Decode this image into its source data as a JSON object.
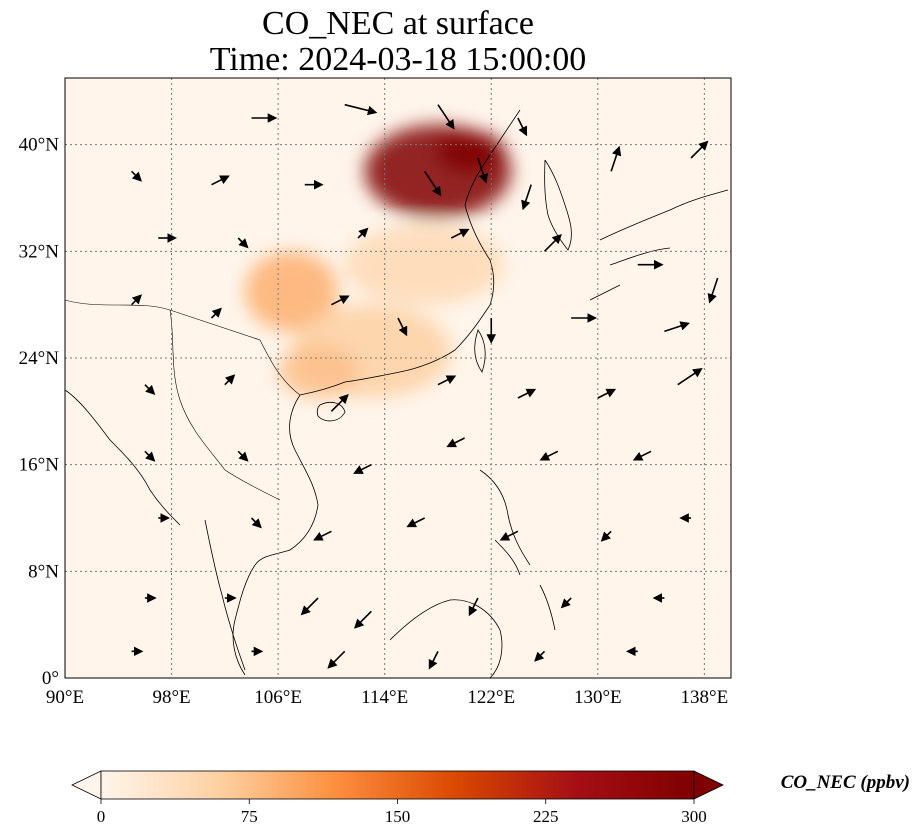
{
  "title": {
    "line1": "CO_NEC at surface",
    "line2": "Time: 2024-03-18 15:00:00"
  },
  "map": {
    "lon_range": [
      90,
      140
    ],
    "lat_range": [
      0,
      45
    ],
    "lon_ticks": [
      {
        "value": 90,
        "label": "90°E"
      },
      {
        "value": 98,
        "label": "98°E"
      },
      {
        "value": 106,
        "label": "106°E"
      },
      {
        "value": 114,
        "label": "114°E"
      },
      {
        "value": 122,
        "label": "122°E"
      },
      {
        "value": 130,
        "label": "130°E"
      },
      {
        "value": 138,
        "label": "138°E"
      }
    ],
    "lat_ticks": [
      {
        "value": 0,
        "label": "0°"
      },
      {
        "value": 8,
        "label": "8°N"
      },
      {
        "value": 16,
        "label": "16°N"
      },
      {
        "value": 24,
        "label": "24°N"
      },
      {
        "value": 32,
        "label": "32°N"
      },
      {
        "value": 40,
        "label": "40°N"
      }
    ],
    "gridlines": true,
    "background_color": "#fff5eb",
    "coastline_color": "#000000",
    "plumes": [
      {
        "name": "north-china-plain",
        "lon": 118.0,
        "lat": 38.0,
        "rx_deg": 5.5,
        "ry_deg": 3.5,
        "value": 300
      },
      {
        "name": "bohai-core",
        "lon": 120.5,
        "lat": 39.5,
        "rx_deg": 2.5,
        "ry_deg": 1.5,
        "value": 300
      },
      {
        "name": "yangtze-east",
        "lon": 117.0,
        "lat": 31.0,
        "rx_deg": 6.0,
        "ry_deg": 3.0,
        "value": 45
      },
      {
        "name": "sichuan",
        "lon": 107.0,
        "lat": 29.0,
        "rx_deg": 3.5,
        "ry_deg": 3.0,
        "value": 90
      },
      {
        "name": "south-china",
        "lon": 113.0,
        "lat": 24.5,
        "rx_deg": 6.0,
        "ry_deg": 3.5,
        "value": 60
      },
      {
        "name": "guangxi",
        "lon": 109.0,
        "lat": 23.0,
        "rx_deg": 3.0,
        "ry_deg": 2.0,
        "value": 75
      }
    ],
    "wind_vectors": [
      {
        "lon": 104,
        "lat": 42,
        "u": 3,
        "v": 0
      },
      {
        "lon": 111,
        "lat": 43,
        "u": 4,
        "v": -1
      },
      {
        "lon": 118,
        "lat": 43,
        "u": 2,
        "v": -3
      },
      {
        "lon": 124,
        "lat": 42,
        "u": 1,
        "v": -2
      },
      {
        "lon": 95,
        "lat": 38,
        "u": 1,
        "v": -1
      },
      {
        "lon": 101,
        "lat": 37,
        "u": 2,
        "v": 1
      },
      {
        "lon": 108,
        "lat": 37,
        "u": 2,
        "v": 0
      },
      {
        "lon": 117,
        "lat": 38,
        "u": 2,
        "v": -3
      },
      {
        "lon": 121,
        "lat": 39,
        "u": 1,
        "v": -3
      },
      {
        "lon": 125,
        "lat": 37,
        "u": -1,
        "v": -3
      },
      {
        "lon": 131,
        "lat": 38,
        "u": 1,
        "v": 3
      },
      {
        "lon": 137,
        "lat": 39,
        "u": 2,
        "v": 2
      },
      {
        "lon": 97,
        "lat": 33,
        "u": 2,
        "v": 0
      },
      {
        "lon": 103,
        "lat": 33,
        "u": 1,
        "v": -1
      },
      {
        "lon": 112,
        "lat": 33,
        "u": 1,
        "v": 1
      },
      {
        "lon": 119,
        "lat": 33,
        "u": 2,
        "v": 1
      },
      {
        "lon": 126,
        "lat": 32,
        "u": 2,
        "v": 2
      },
      {
        "lon": 133,
        "lat": 31,
        "u": 3,
        "v": 0
      },
      {
        "lon": 139,
        "lat": 30,
        "u": -1,
        "v": -3
      },
      {
        "lon": 95,
        "lat": 28,
        "u": 1,
        "v": 1
      },
      {
        "lon": 101,
        "lat": 27,
        "u": 1,
        "v": 1
      },
      {
        "lon": 110,
        "lat": 28,
        "u": 2,
        "v": 1
      },
      {
        "lon": 115,
        "lat": 27,
        "u": 1,
        "v": -2
      },
      {
        "lon": 122,
        "lat": 27,
        "u": 0,
        "v": -3
      },
      {
        "lon": 128,
        "lat": 27,
        "u": 3,
        "v": 0
      },
      {
        "lon": 135,
        "lat": 26,
        "u": 3,
        "v": 1
      },
      {
        "lon": 96,
        "lat": 22,
        "u": 1,
        "v": -1
      },
      {
        "lon": 102,
        "lat": 22,
        "u": 1,
        "v": 1
      },
      {
        "lon": 110,
        "lat": 20,
        "u": 2,
        "v": 2
      },
      {
        "lon": 118,
        "lat": 22,
        "u": 2,
        "v": 1
      },
      {
        "lon": 124,
        "lat": 21,
        "u": 2,
        "v": 1
      },
      {
        "lon": 130,
        "lat": 21,
        "u": 2,
        "v": 1
      },
      {
        "lon": 136,
        "lat": 22,
        "u": 3,
        "v": 2
      },
      {
        "lon": 96,
        "lat": 17,
        "u": 1,
        "v": -1
      },
      {
        "lon": 103,
        "lat": 17,
        "u": 1,
        "v": -1
      },
      {
        "lon": 113,
        "lat": 16,
        "u": -2,
        "v": -1
      },
      {
        "lon": 120,
        "lat": 18,
        "u": -2,
        "v": -1
      },
      {
        "lon": 127,
        "lat": 17,
        "u": -2,
        "v": -1
      },
      {
        "lon": 134,
        "lat": 17,
        "u": -2,
        "v": -1
      },
      {
        "lon": 97,
        "lat": 12,
        "u": 1,
        "v": 0
      },
      {
        "lon": 104,
        "lat": 12,
        "u": 1,
        "v": -1
      },
      {
        "lon": 110,
        "lat": 11,
        "u": -2,
        "v": -1
      },
      {
        "lon": 117,
        "lat": 12,
        "u": -2,
        "v": -1
      },
      {
        "lon": 124,
        "lat": 11,
        "u": -2,
        "v": -1
      },
      {
        "lon": 131,
        "lat": 11,
        "u": -1,
        "v": -1
      },
      {
        "lon": 137,
        "lat": 12,
        "u": -1,
        "v": 0
      },
      {
        "lon": 96,
        "lat": 6,
        "u": 1,
        "v": 0
      },
      {
        "lon": 102,
        "lat": 6,
        "u": 1,
        "v": 0
      },
      {
        "lon": 109,
        "lat": 6,
        "u": -2,
        "v": -2
      },
      {
        "lon": 113,
        "lat": 5,
        "u": -2,
        "v": -2
      },
      {
        "lon": 121,
        "lat": 6,
        "u": -1,
        "v": -2
      },
      {
        "lon": 128,
        "lat": 6,
        "u": -1,
        "v": -1
      },
      {
        "lon": 135,
        "lat": 6,
        "u": -1,
        "v": 0
      },
      {
        "lon": 95,
        "lat": 2,
        "u": 1,
        "v": 0
      },
      {
        "lon": 104,
        "lat": 2,
        "u": 1,
        "v": 0
      },
      {
        "lon": 111,
        "lat": 2,
        "u": -2,
        "v": -2
      },
      {
        "lon": 118,
        "lat": 2,
        "u": -1,
        "v": -2
      },
      {
        "lon": 126,
        "lat": 2,
        "u": -1,
        "v": -1
      },
      {
        "lon": 133,
        "lat": 2,
        "u": -1,
        "v": 0
      }
    ]
  },
  "colorbar": {
    "title": "CO_NEC (ppbv)",
    "min": 0,
    "max": 300,
    "extend": "both",
    "ticks": [
      {
        "value": 0,
        "label": "0"
      },
      {
        "value": 75,
        "label": "75"
      },
      {
        "value": 150,
        "label": "150"
      },
      {
        "value": 225,
        "label": "225"
      },
      {
        "value": 300,
        "label": "300"
      }
    ],
    "colors": [
      "#fff5eb",
      "#fdd0a2",
      "#fd8d3c",
      "#d94801",
      "#a50f15",
      "#7f0000"
    ]
  }
}
